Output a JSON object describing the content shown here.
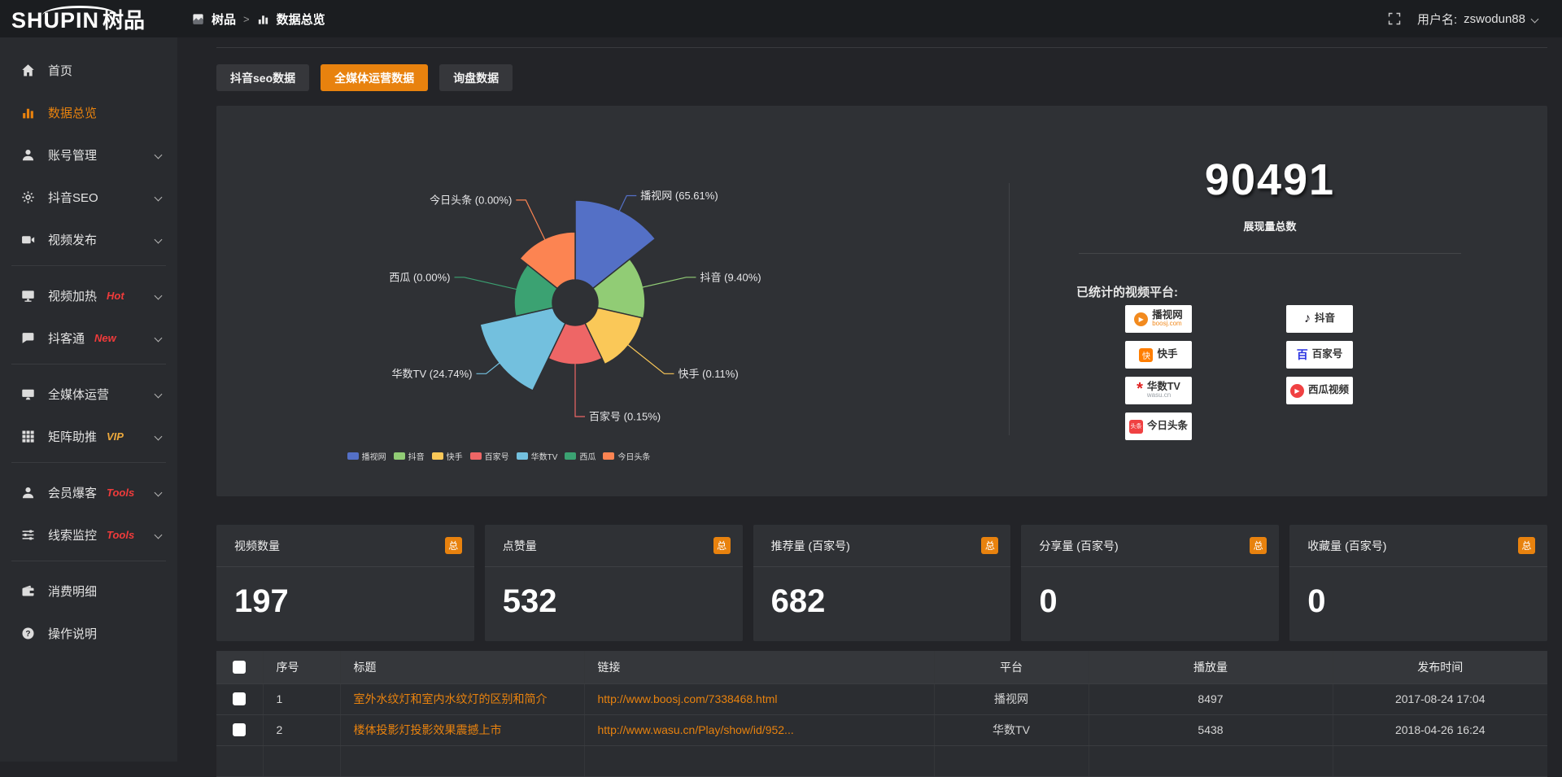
{
  "header": {
    "logo_en": "SHUPIN",
    "logo_cn": "树品",
    "breadcrumb_root": "树品",
    "breadcrumb_separator": ">",
    "breadcrumb_current": "数据总览",
    "username_label": "用户名:",
    "username": "zswodun88"
  },
  "sidebar": {
    "items": [
      {
        "label": "首页",
        "icon": "home-icon",
        "active": false,
        "chevron": false,
        "badge": "",
        "badge_color": "",
        "divider_after": false
      },
      {
        "label": "数据总览",
        "icon": "bar-chart-icon",
        "active": true,
        "chevron": false,
        "badge": "",
        "badge_color": "",
        "divider_after": false
      },
      {
        "label": "账号管理",
        "icon": "user-icon",
        "active": false,
        "chevron": true,
        "badge": "",
        "badge_color": "",
        "divider_after": false
      },
      {
        "label": "抖音SEO",
        "icon": "gear-icon",
        "active": false,
        "chevron": true,
        "badge": "",
        "badge_color": "",
        "divider_after": false
      },
      {
        "label": "视频发布",
        "icon": "video-icon",
        "active": false,
        "chevron": true,
        "badge": "",
        "badge_color": "",
        "divider_after": true
      },
      {
        "label": "视频加热",
        "icon": "monitor-icon",
        "active": false,
        "chevron": true,
        "badge": "Hot",
        "badge_color": "#f03b3b",
        "divider_after": false
      },
      {
        "label": "抖客通",
        "icon": "chat-icon",
        "active": false,
        "chevron": true,
        "badge": "New",
        "badge_color": "#f03b3b",
        "divider_after": true
      },
      {
        "label": "全媒体运营",
        "icon": "display-icon",
        "active": false,
        "chevron": true,
        "badge": "",
        "badge_color": "",
        "divider_after": false
      },
      {
        "label": "矩阵助推",
        "icon": "grid-icon",
        "active": false,
        "chevron": true,
        "badge": "VIP",
        "badge_color": "#eda93c",
        "divider_after": true
      },
      {
        "label": "会员爆客",
        "icon": "user-icon",
        "active": false,
        "chevron": true,
        "badge": "Tools",
        "badge_color": "#f03b3b",
        "divider_after": false
      },
      {
        "label": "线索监控",
        "icon": "sliders-icon",
        "active": false,
        "chevron": true,
        "badge": "Tools",
        "badge_color": "#f03b3b",
        "divider_after": true
      },
      {
        "label": "消费明细",
        "icon": "wallet-icon",
        "active": false,
        "chevron": false,
        "badge": "",
        "badge_color": "",
        "divider_after": false
      },
      {
        "label": "操作说明",
        "icon": "question-icon",
        "active": false,
        "chevron": false,
        "badge": "",
        "badge_color": "",
        "divider_after": false
      }
    ]
  },
  "tabs": [
    {
      "label": "抖音seo数据",
      "active": false
    },
    {
      "label": "全媒体运营数据",
      "active": true
    },
    {
      "label": "询盘数据",
      "active": false
    }
  ],
  "chart_data": {
    "type": "pie",
    "variant": "nightingale_rose",
    "legend_position": "bottom",
    "inner_radius": 28,
    "items": [
      {
        "name": "播视网",
        "percent": 65.61,
        "color": "#5470c6",
        "radius": 126
      },
      {
        "name": "抖音",
        "percent": 9.4,
        "color": "#91cc75",
        "radius": 86
      },
      {
        "name": "快手",
        "percent": 0.11,
        "color": "#fac858",
        "radius": 84
      },
      {
        "name": "百家号",
        "percent": 0.15,
        "color": "#ee6666",
        "radius": 76
      },
      {
        "name": "华数TV",
        "percent": 24.74,
        "color": "#73c0de",
        "radius": 120
      },
      {
        "name": "西瓜",
        "percent": 0,
        "color": "#3ba272",
        "radius": 75
      },
      {
        "name": "今日头条",
        "percent": 0,
        "color": "#fc8452",
        "radius": 87
      }
    ]
  },
  "summary": {
    "total_value": "90491",
    "total_label": "展现量总数",
    "platforms_label": "已统计的视频平台:",
    "platform_logos": [
      {
        "name": "播视网",
        "sub": "boosj.com",
        "sub_color": "#f28a1e",
        "icon": "boosj-icon",
        "col": 1
      },
      {
        "name": "快手",
        "sub": "",
        "sub_color": "",
        "icon": "kuaishou-icon",
        "col": 1
      },
      {
        "name": "华数TV",
        "sub": "wasu.cn",
        "sub_color": "#9aa0a6",
        "icon": "wasu-icon",
        "col": 1
      },
      {
        "name": "今日头条",
        "sub": "",
        "sub_color": "",
        "icon": "toutiao-icon",
        "col": 1
      },
      {
        "name": "抖音",
        "sub": "",
        "sub_color": "",
        "icon": "douyin-icon",
        "col": 2
      },
      {
        "name": "百家号",
        "sub": "",
        "sub_color": "",
        "icon": "baijiahao-icon",
        "col": 2
      },
      {
        "name": "西瓜视频",
        "sub": "",
        "sub_color": "",
        "icon": "xigua-icon",
        "col": 2
      }
    ]
  },
  "stat_cards": [
    {
      "label": "视频数量",
      "badge": "总",
      "value": "197"
    },
    {
      "label": "点赞量",
      "badge": "总",
      "value": "532"
    },
    {
      "label": "推荐量 (百家号)",
      "badge": "总",
      "value": "682"
    },
    {
      "label": "分享量 (百家号)",
      "badge": "总",
      "value": "0"
    },
    {
      "label": "收藏量 (百家号)",
      "badge": "总",
      "value": "0"
    }
  ],
  "table": {
    "headers": [
      "序号",
      "标题",
      "链接",
      "平台",
      "播放量",
      "发布时间"
    ],
    "rows": [
      {
        "seq": "1",
        "title": "室外水纹灯和室内水纹灯的区别和简介",
        "link": "http://www.boosj.com/7338468.html",
        "platform": "播视网",
        "plays": "8497",
        "time": "2017-08-24 17:04"
      },
      {
        "seq": "2",
        "title": "楼体投影灯投影效果震撼上市",
        "link": "http://www.wasu.cn/Play/show/id/952...",
        "platform": "华数TV",
        "plays": "5438",
        "time": "2018-04-26 16:24"
      },
      {
        "seq": "",
        "title": "",
        "link": "",
        "platform": "",
        "plays": "",
        "time": ""
      }
    ]
  },
  "colors": {
    "accent_orange": "#e8820e",
    "hot_red": "#f03b3b",
    "vip_gold": "#eda93c",
    "panel_bg": "#2f3135"
  }
}
